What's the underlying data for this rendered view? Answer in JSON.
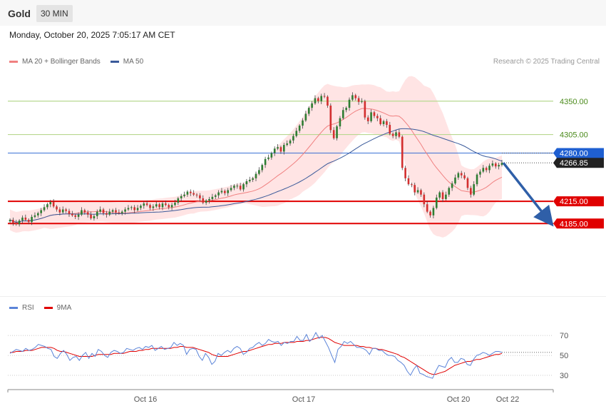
{
  "header": {
    "title": "Gold",
    "timeframe": "30 MIN",
    "datetime": "Monday, October 20, 2025 7:05:17 AM CET"
  },
  "legend": {
    "ma_bb": "MA 20 + Bollinger Bands",
    "ma50": "MA 50",
    "credit": "Research © 2025 Trading Central"
  },
  "rsi_legend": {
    "rsi": "RSI",
    "ma9": "9MA"
  },
  "colors": {
    "bull": "#2e7d32",
    "bear": "#d32f2f",
    "bb_fill": "#ffd6d6",
    "ma20": "#f08080",
    "ma50": "#3a5a9a",
    "blue_level": "#1f5fd1",
    "red_level": "#e00000",
    "green_level": "#b8d890",
    "arrow": "#2f5fa8",
    "rsi": "#5b84d8",
    "rsi_ma": "#e00000"
  },
  "chart_data": [
    {
      "type": "candlestick",
      "title": "",
      "y_range": [
        4090,
        4395
      ],
      "x_ticks": [
        "Oct 16",
        "Oct 17",
        "Oct 20",
        "Oct 22"
      ],
      "levels": [
        {
          "value": 4350.0,
          "label": "4350.00",
          "kind": "green"
        },
        {
          "value": 4305.0,
          "label": "4305.00",
          "kind": "green"
        },
        {
          "value": 4280.0,
          "label": "4280.00",
          "kind": "blue"
        },
        {
          "value": 4266.85,
          "label": "4266.85",
          "kind": "current"
        },
        {
          "value": 4215.0,
          "label": "4215.00",
          "kind": "red"
        },
        {
          "value": 4185.0,
          "label": "4185.00",
          "kind": "red"
        }
      ],
      "forecast_arrow": {
        "from": 4266.85,
        "to": 4185.0
      },
      "price_path": [
        4190,
        4186,
        4184,
        4189,
        4193,
        4190,
        4187,
        4194,
        4196,
        4199,
        4203,
        4207,
        4211,
        4214,
        4208,
        4204,
        4200,
        4204,
        4202,
        4198,
        4196,
        4194,
        4197,
        4203,
        4200,
        4197,
        4192,
        4195,
        4201,
        4204,
        4199,
        4197,
        4201,
        4203,
        4200,
        4199,
        4201,
        4204,
        4206,
        4207,
        4203,
        4206,
        4209,
        4212,
        4210,
        4206,
        4208,
        4211,
        4207,
        4212,
        4210,
        4207,
        4210,
        4213,
        4219,
        4222,
        4224,
        4228,
        4226,
        4224,
        4223,
        4219,
        4213,
        4216,
        4218,
        4221,
        4223,
        4227,
        4229,
        4226,
        4230,
        4233,
        4236,
        4236,
        4231,
        4238,
        4242,
        4244,
        4246,
        4252,
        4257,
        4264,
        4272,
        4274,
        4280,
        4286,
        4288,
        4282,
        4291,
        4293,
        4297,
        4303,
        4310,
        4317,
        4324,
        4333,
        4341,
        4347,
        4354,
        4350,
        4357,
        4356,
        4344,
        4311,
        4300,
        4316,
        4327,
        4338,
        4341,
        4352,
        4358,
        4354,
        4349,
        4350,
        4328,
        4323,
        4335,
        4330,
        4327,
        4319,
        4323,
        4318,
        4306,
        4303,
        4308,
        4302,
        4260,
        4246,
        4238,
        4237,
        4227,
        4230,
        4224,
        4211,
        4201,
        4196,
        4206,
        4220,
        4227,
        4218,
        4224,
        4233,
        4239,
        4247,
        4253,
        4250,
        4246,
        4233,
        4224,
        4238,
        4251,
        4255,
        4260,
        4257,
        4263,
        4266,
        4262,
        4264,
        4266.85
      ]
    },
    {
      "type": "line",
      "title": "",
      "y_range": [
        20,
        88
      ],
      "y_ticks": [
        30,
        50,
        70
      ],
      "series": [
        {
          "name": "RSI",
          "values": [
            52,
            54,
            56,
            55,
            54,
            57,
            55,
            56,
            58,
            61,
            60,
            59,
            57,
            56,
            49,
            47,
            52,
            55,
            51,
            45,
            48,
            49,
            45,
            50,
            53,
            47,
            52,
            49,
            56,
            54,
            50,
            48,
            53,
            55,
            54,
            52,
            53,
            57,
            56,
            55,
            57,
            58,
            56,
            59,
            58,
            60,
            55,
            57,
            59,
            56,
            57,
            58,
            63,
            60,
            62,
            60,
            51,
            56,
            57,
            56,
            49,
            45,
            52,
            48,
            41,
            44,
            52,
            50,
            53,
            55,
            53,
            57,
            59,
            57,
            51,
            53,
            57,
            58,
            61,
            63,
            60,
            62,
            66,
            64,
            63,
            64,
            60,
            63,
            62,
            64,
            64,
            69,
            65,
            65,
            71,
            64,
            67,
            73,
            67,
            70,
            64,
            58,
            50,
            43,
            56,
            59,
            64,
            62,
            64,
            61,
            58,
            58,
            57,
            55,
            51,
            57,
            57,
            55,
            55,
            52,
            50,
            50,
            49,
            45,
            43,
            40,
            34,
            30,
            36,
            40,
            32,
            31,
            29,
            28,
            27,
            34,
            40,
            39,
            38,
            45,
            48,
            43,
            43,
            47,
            46,
            41,
            40,
            46,
            50,
            51,
            53,
            52,
            50,
            52,
            54,
            54,
            53
          ]
        },
        {
          "name": "9MA",
          "values": [
            53,
            53,
            54,
            54,
            54,
            55,
            55,
            55,
            56,
            57,
            58,
            58,
            58,
            58,
            57,
            55,
            54,
            54,
            53,
            52,
            51,
            50,
            49,
            49,
            49,
            49,
            49,
            50,
            51,
            51,
            51,
            51,
            51,
            52,
            52,
            52,
            52,
            53,
            54,
            54,
            54,
            55,
            55,
            56,
            56,
            57,
            57,
            57,
            57,
            57,
            57,
            57,
            58,
            58,
            59,
            59,
            58,
            58,
            58,
            57,
            56,
            55,
            54,
            53,
            51,
            50,
            49,
            49,
            49,
            49,
            50,
            51,
            52,
            53,
            54,
            54,
            55,
            56,
            57,
            58,
            59,
            60,
            61,
            61,
            62,
            62,
            62,
            63,
            63,
            63,
            63,
            64,
            64,
            64,
            65,
            65,
            66,
            67,
            68,
            68,
            68,
            67,
            65,
            63,
            62,
            61,
            60,
            60,
            60,
            60,
            60,
            59,
            59,
            58,
            58,
            57,
            57,
            56,
            56,
            55,
            54,
            53,
            52,
            51,
            49,
            48,
            46,
            44,
            42,
            40,
            38,
            36,
            34,
            32,
            31,
            31,
            32,
            33,
            34,
            36,
            38,
            40,
            41,
            42,
            43,
            44,
            44,
            45,
            46,
            46,
            47,
            48,
            49,
            50,
            51,
            51,
            52
          ]
        }
      ]
    }
  ]
}
